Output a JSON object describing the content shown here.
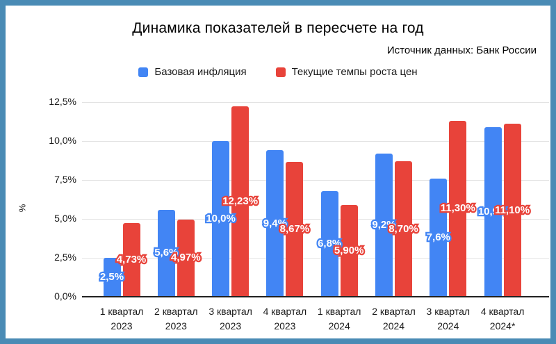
{
  "frame": {
    "border_color": "#4a8bb5"
  },
  "header": {
    "title": "Динамика показателей в пересчете на год",
    "source": "Источник данных: Банк России"
  },
  "legend": {
    "items": [
      {
        "label": "Базовая инфляция",
        "color": "#4285f4"
      },
      {
        "label": "Текущие темпы роста цен",
        "color": "#e8433a"
      }
    ]
  },
  "chart_data": {
    "type": "bar",
    "title": "Динамика показателей в пересчете на год",
    "source_note": "Источник данных: Банк России",
    "categories": [
      {
        "line1": "1 квартал",
        "line2": "2023"
      },
      {
        "line1": "2 квартал",
        "line2": "2023"
      },
      {
        "line1": "3 квартал",
        "line2": "2023"
      },
      {
        "line1": "4 квартал",
        "line2": "2023"
      },
      {
        "line1": "1 квартал",
        "line2": "2024"
      },
      {
        "line1": "2 квартал",
        "line2": "2024"
      },
      {
        "line1": "3 квартал",
        "line2": "2024"
      },
      {
        "line1": "4 квартал",
        "line2": "2024*"
      }
    ],
    "series": [
      {
        "name": "Базовая инфляция",
        "color": "#4285f4",
        "values": [
          2.5,
          5.6,
          10.0,
          9.4,
          6.8,
          9.2,
          7.6,
          10.9
        ],
        "labels": [
          "2,5%",
          "5,6%",
          "10,0%",
          "9,4%",
          "6,8%",
          "9,2%",
          "7,6%",
          "10,9%"
        ]
      },
      {
        "name": "Текущие темпы роста цен",
        "color": "#e8433a",
        "values": [
          4.73,
          4.97,
          12.23,
          8.67,
          5.9,
          8.7,
          11.3,
          11.1
        ],
        "labels": [
          "4,73%",
          "4,97%",
          "12,23%",
          "8,67%",
          "5,90%",
          "8,70%",
          "11,30%",
          "11,10%"
        ]
      }
    ],
    "ylabel": "%",
    "yticks": [
      {
        "value": 0,
        "label": "0,0%"
      },
      {
        "value": 2.5,
        "label": "2,5%"
      },
      {
        "value": 5,
        "label": "5,0%"
      },
      {
        "value": 7.5,
        "label": "7,5%"
      },
      {
        "value": 10,
        "label": "10,0%"
      },
      {
        "value": 12.5,
        "label": "12,5%"
      }
    ],
    "ylim": [
      0,
      12.5
    ],
    "grid": true,
    "legend_position": "top"
  }
}
